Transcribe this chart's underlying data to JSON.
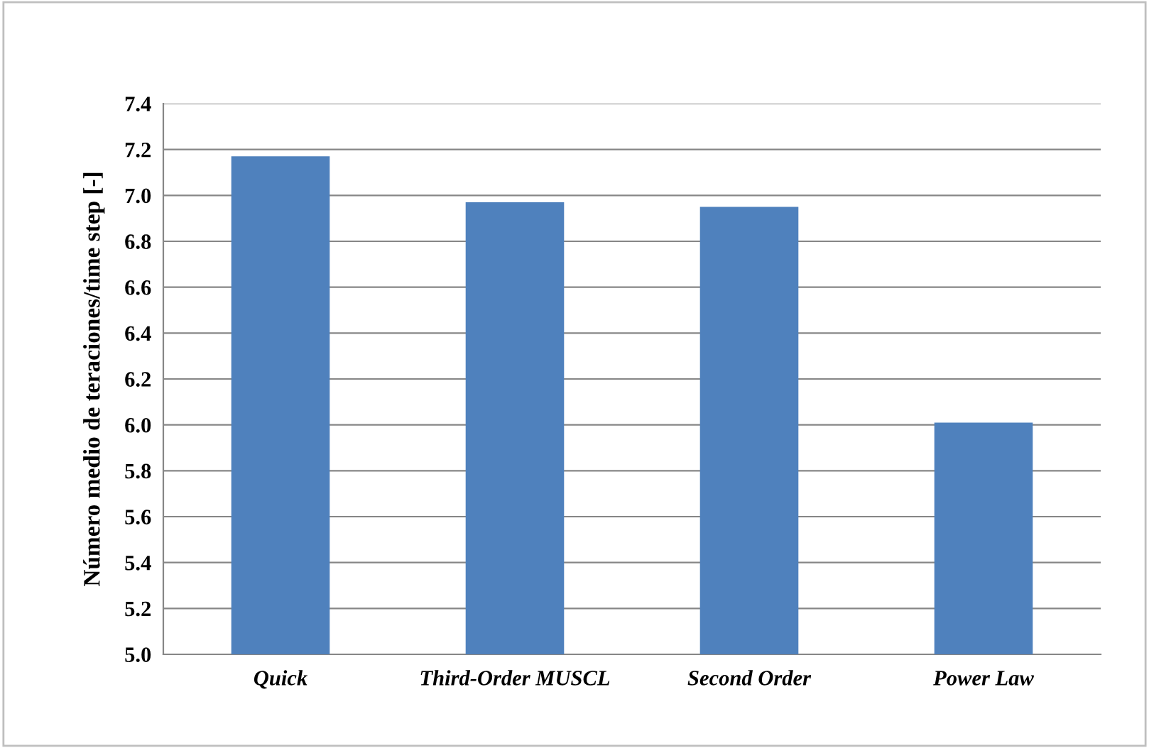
{
  "chart_data": {
    "type": "bar",
    "ylabel": "Número medio de teraciones/time step [-]",
    "categories": [
      "Quick",
      "Third-Order MUSCL",
      "Second Order",
      "Power Law"
    ],
    "values": [
      7.17,
      6.97,
      6.95,
      6.01
    ],
    "color": "#4f81bd",
    "ylim": [
      5.0,
      7.4
    ],
    "yticks": [
      {
        "value": 5.0,
        "label": "5.0"
      },
      {
        "value": 5.2,
        "label": "5.2"
      },
      {
        "value": 5.4,
        "label": "5.4"
      },
      {
        "value": 5.6,
        "label": "5.6"
      },
      {
        "value": 5.8,
        "label": "5.8"
      },
      {
        "value": 6.0,
        "label": "6.0"
      },
      {
        "value": 6.2,
        "label": "6.2"
      },
      {
        "value": 6.4,
        "label": "6.4"
      },
      {
        "value": 6.6,
        "label": "6.6"
      },
      {
        "value": 6.8,
        "label": "6.8"
      },
      {
        "value": 7.0,
        "label": "7.0"
      },
      {
        "value": 7.2,
        "label": "7.2"
      },
      {
        "value": 7.4,
        "label": "7.4"
      }
    ],
    "grid": "y"
  }
}
